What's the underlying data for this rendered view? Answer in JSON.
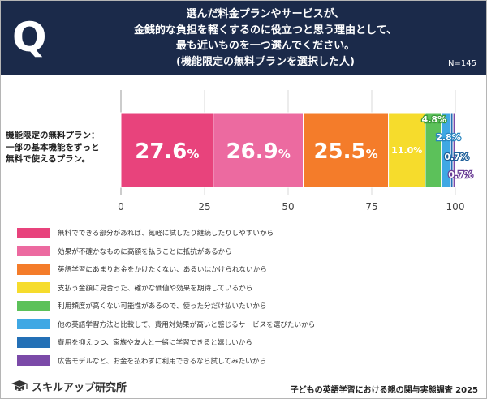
{
  "header": {
    "q_mark": "Q",
    "question_lines": [
      "選んだ料金プランやサービスが、",
      "金銭的な負担を軽くするのに役立つと思う理由として、",
      "最も近いものを一つ選んでください。",
      "(機能限定の無料プランを選択した人)"
    ],
    "n_label": "N=145"
  },
  "chart_data": {
    "type": "bar",
    "orientation": "horizontal-stacked-100",
    "category_label_lines": [
      "機能限定の無料プラン：",
      "一部の基本機能をずっと",
      "無料で使えるプラン。"
    ],
    "xlim": [
      0,
      100
    ],
    "x_ticks": [
      0,
      25,
      50,
      75,
      100
    ],
    "grid": true,
    "series": [
      {
        "name": "無料でできる部分があれば、気軽に試したり継続したりしやすいから",
        "value": 27.6,
        "label": "27.6%",
        "color": "#e8437c"
      },
      {
        "name": "効果が不確かなものに高額を払うことに抵抗があるから",
        "value": 26.9,
        "label": "26.9%",
        "color": "#ec6aa0"
      },
      {
        "name": "英語学習にあまりお金をかけたくない、あるいはかけられないから",
        "value": 25.5,
        "label": "25.5%",
        "color": "#f47c2a"
      },
      {
        "name": "支払う金額に見合った、確かな価値や効果を期待しているから",
        "value": 11.0,
        "label": "11.0%",
        "color": "#f6dc2c"
      },
      {
        "name": "利用頻度が高くない可能性があるので、使った分だけ払いたいから",
        "value": 4.8,
        "label": "4.8%",
        "color": "#5cc15a"
      },
      {
        "name": "他の英語学習方法と比較して、費用対効果が高いと感じるサービスを選びたいから",
        "value": 2.8,
        "label": "2.8%",
        "color": "#3fa8e4"
      },
      {
        "name": "費用を抑えつつ、家族や友人と一緒に学習できると嬉しいから",
        "value": 0.7,
        "label": "0.7%",
        "color": "#2370b6"
      },
      {
        "name": "広告モデルなど、お金を払わずに利用できるなら試してみたいから",
        "value": 0.7,
        "label": "0.7%",
        "color": "#7b4aa8"
      }
    ]
  },
  "footer": {
    "logo_text": "スキルアップ研究所",
    "source_note": "子どもの英語学習における親の関与実態調査 2025"
  }
}
